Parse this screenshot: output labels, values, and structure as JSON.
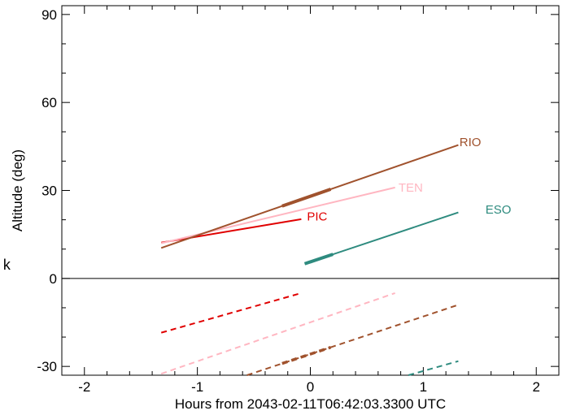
{
  "chart_data": {
    "type": "line",
    "xlabel": "Hours from 2043-02-11T06:42:03.3300 UTC",
    "ylabel": "Altitude (deg)",
    "xlim": [
      -2.2,
      2.2
    ],
    "ylim": [
      -33,
      93
    ],
    "x_ticks": [
      -2,
      -1,
      0,
      1,
      2
    ],
    "y_ticks": [
      -30,
      0,
      30,
      60,
      90
    ],
    "side_mark": "k",
    "grid": false,
    "zero_line": true,
    "series": [
      {
        "name": "PIC",
        "color": "#e00000",
        "x": [
          -1.32,
          -0.08
        ],
        "y": [
          12.2,
          20.2
        ],
        "highlight": null,
        "shadow_x": [
          -1.32,
          -0.08
        ],
        "shadow_y": [
          -18.5,
          -5.0
        ]
      },
      {
        "name": "TEN",
        "color": "#ffb6c1",
        "x": [
          -1.32,
          0.75
        ],
        "y": [
          12.0,
          31.0
        ],
        "highlight": null,
        "shadow_x": [
          -1.32,
          0.75
        ],
        "shadow_y": [
          -32.5,
          -5.0
        ]
      },
      {
        "name": "RIO",
        "color": "#a0522d",
        "x": [
          -1.32,
          1.31
        ],
        "y": [
          10.4,
          45.5
        ],
        "highlight": [
          -0.25,
          0.18
        ],
        "shadow_x": [
          -0.6,
          1.31
        ],
        "shadow_y": [
          -33.5,
          -9.0
        ],
        "shadow_highlight": [
          -0.25,
          0.18
        ]
      },
      {
        "name": "ESO",
        "color": "#2e8b7f",
        "x": [
          -0.05,
          1.31
        ],
        "y": [
          5.0,
          22.5
        ],
        "highlight": [
          -0.05,
          0.2
        ],
        "shadow_x": [
          0.85,
          1.31
        ],
        "shadow_y": [
          -33.2,
          -28.2
        ]
      }
    ],
    "labels": [
      {
        "text": "RIO",
        "x": 1.32,
        "y": 46.5,
        "color": "#a0522d"
      },
      {
        "text": "TEN",
        "x": 0.78,
        "y": 31.0,
        "color": "#ffb6c1"
      },
      {
        "text": "PIC",
        "x": -0.03,
        "y": 21.2,
        "color": "#e00000"
      },
      {
        "text": "ESO",
        "x": 1.55,
        "y": 23.5,
        "color": "#2e8b7f"
      }
    ]
  }
}
